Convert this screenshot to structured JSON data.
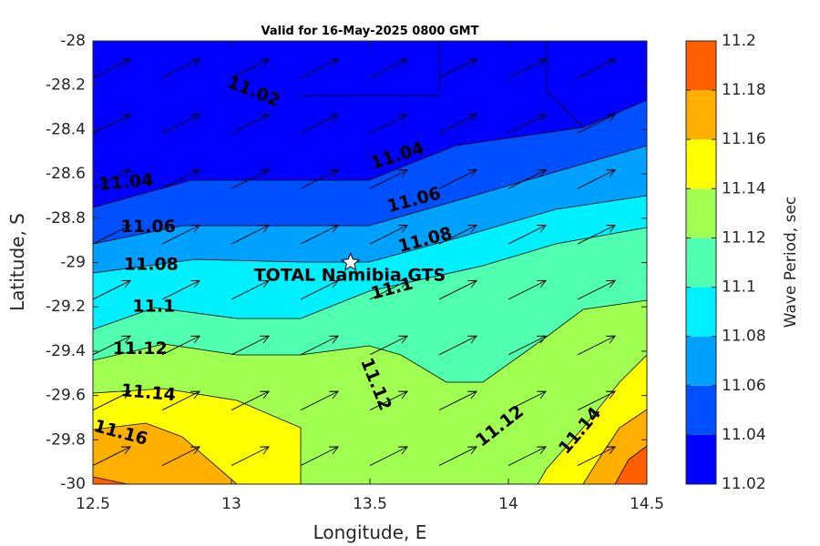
{
  "chart_data": {
    "type": "contour",
    "title": "Valid for 16-May-2025 0800 GMT",
    "xlabel": "Longitude, E",
    "ylabel": "Latitude, S",
    "xlim": [
      12.5,
      14.5
    ],
    "ylim": [
      -30,
      -28
    ],
    "x_ticks": [
      "12.5",
      "13",
      "13.5",
      "14",
      "14.5"
    ],
    "y_ticks": [
      "-28",
      "-28.2",
      "-28.4",
      "-28.6",
      "-28.8",
      "-29",
      "-29.2",
      "-29.4",
      "-29.6",
      "-29.8",
      "-30"
    ],
    "colorbar": {
      "label": "Wave Period, sec",
      "levels": [
        11.02,
        11.04,
        11.06,
        11.08,
        11.1,
        11.12,
        11.14,
        11.16,
        11.18,
        11.2
      ],
      "tick_labels": [
        "11.02",
        "11.04",
        "11.06",
        "11.08",
        "11.1",
        "11.12",
        "11.14",
        "11.16",
        "11.18",
        "11.2"
      ],
      "colors": [
        "#0000ff",
        "#0050ff",
        "#00a0ff",
        "#00f0ff",
        "#50ffb0",
        "#a0ff50",
        "#ffff00",
        "#ffaf00",
        "#ff5f00"
      ]
    },
    "contour_labels": [
      {
        "text": "11.02",
        "lon": 13.08,
        "lat": -28.23,
        "angle": 22
      },
      {
        "text": "11.04",
        "lon": 13.6,
        "lat": -28.52,
        "angle": -18
      },
      {
        "text": "11.04",
        "lon": 12.62,
        "lat": -28.64,
        "angle": -5
      },
      {
        "text": "11.06",
        "lon": 13.66,
        "lat": -28.72,
        "angle": -15
      },
      {
        "text": "11.06",
        "lon": 12.7,
        "lat": -28.84,
        "angle": 0
      },
      {
        "text": "11.08",
        "lon": 13.7,
        "lat": -28.9,
        "angle": -15
      },
      {
        "text": "11.08",
        "lon": 12.71,
        "lat": -29.01,
        "angle": 0
      },
      {
        "text": "11.1",
        "lon": 13.58,
        "lat": -29.12,
        "angle": -15
      },
      {
        "text": "11.1",
        "lon": 12.72,
        "lat": -29.2,
        "angle": 0
      },
      {
        "text": "11.12",
        "lon": 12.67,
        "lat": -29.39,
        "angle": 0
      },
      {
        "text": "11.12",
        "lon": 13.52,
        "lat": -29.55,
        "angle": 68
      },
      {
        "text": "11.12",
        "lon": 13.97,
        "lat": -29.74,
        "angle": -38
      },
      {
        "text": "11.14",
        "lon": 12.7,
        "lat": -29.59,
        "angle": 5
      },
      {
        "text": "11.14",
        "lon": 14.26,
        "lat": -29.76,
        "angle": -50
      },
      {
        "text": "11.16",
        "lon": 12.6,
        "lat": -29.77,
        "angle": 15
      }
    ],
    "annotation": {
      "text": "TOTAL Namibia GTS",
      "marker": "star",
      "lon": 13.43,
      "lat": -29.0
    },
    "vector_field": {
      "description_units": "wave direction arrows",
      "lon_start": 12.5,
      "lon_step": 0.25,
      "lon_count": 8,
      "lat_start": -28.125,
      "lat_step": -0.25,
      "lat_count": 8,
      "direction_dx": 1.0,
      "direction_dy": 0.5
    }
  }
}
